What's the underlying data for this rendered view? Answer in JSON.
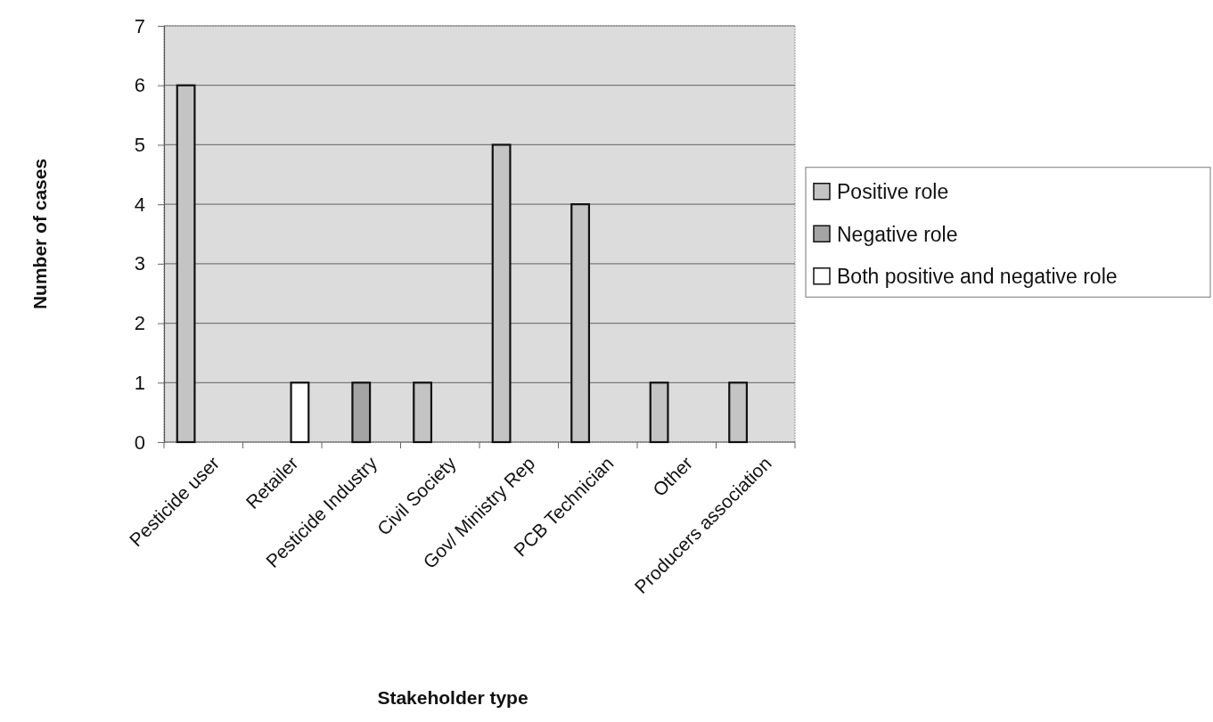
{
  "chart_data": {
    "type": "bar",
    "xlabel": "Stakeholder type",
    "ylabel": "Number of cases",
    "categories": [
      "Pesticide user",
      "Retailer",
      "Pesticide Industry",
      "Civil Society",
      "Gov/ Ministry Rep",
      "PCB Technician",
      "Other",
      "Producers association"
    ],
    "series": [
      {
        "name": "Positive role",
        "color": "#c4c4c4",
        "values": [
          6,
          null,
          null,
          1,
          5,
          4,
          1,
          1
        ]
      },
      {
        "name": "Negative role",
        "color": "#a4a4a4",
        "values": [
          null,
          null,
          1,
          null,
          null,
          null,
          null,
          null
        ]
      },
      {
        "name": "Both positive and negative role",
        "color": "#ffffff",
        "values": [
          null,
          1,
          null,
          null,
          null,
          null,
          null,
          null
        ]
      }
    ],
    "ylim": [
      0,
      7
    ],
    "yticks": [
      0,
      1,
      2,
      3,
      4,
      5,
      6,
      7
    ],
    "grid": "y",
    "legend": "right"
  }
}
